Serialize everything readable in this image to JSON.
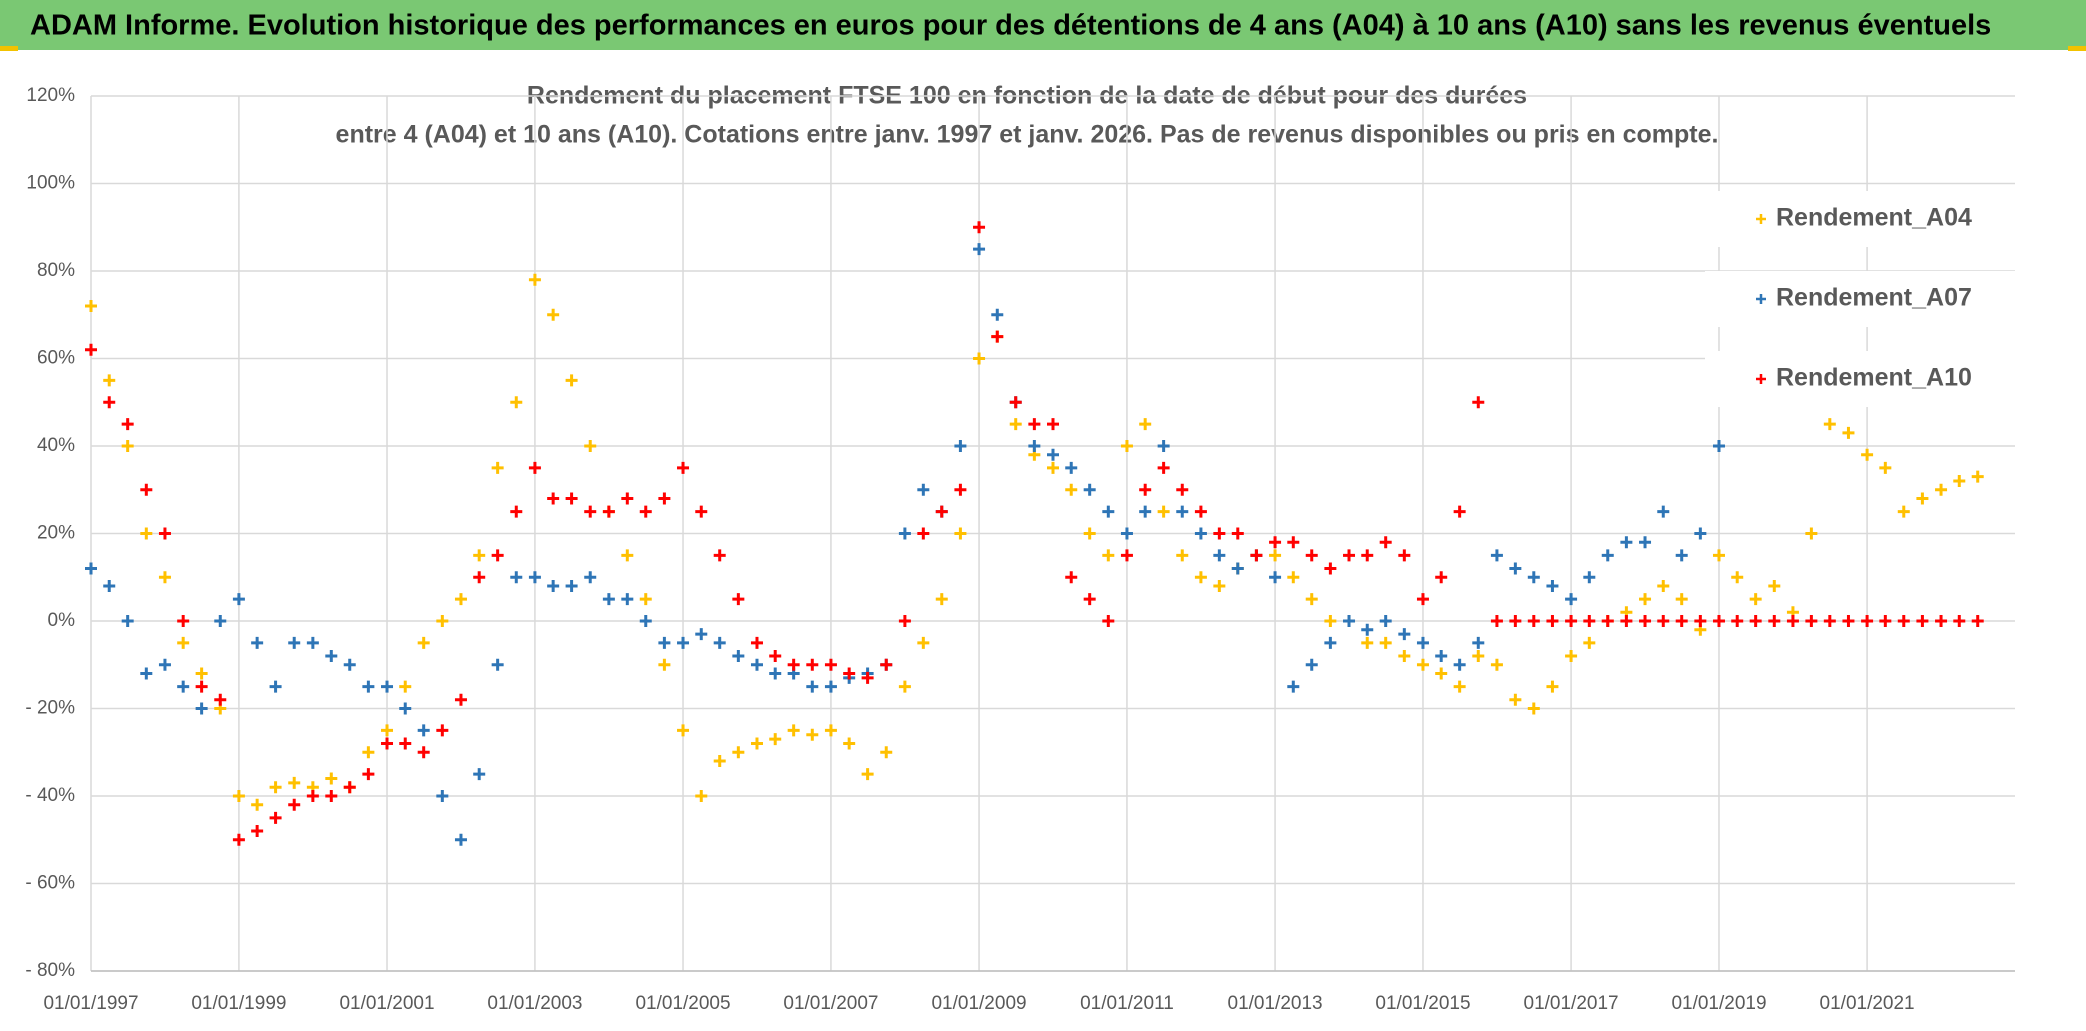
{
  "page_title": "ADAM Informe. Evolution historique des performances en euros pour des détentions de 4 ans (A04) à 10 ans (A10) sans les revenus éventuels",
  "chart_data": {
    "type": "scatter",
    "title": "Rendement du placement FTSE 100 en fonction de la date de début pour des durées",
    "subtitle": "entre 4 (A04) et 10 ans (A10). Cotations entre janv. 1997 et janv. 2026. Pas de revenus disponibles ou pris en compte.",
    "x": [
      "1997-01-01",
      "1997-04-01",
      "1997-07-01",
      "1997-10-01",
      "1998-01-01",
      "1998-04-01",
      "1998-07-01",
      "1998-10-01",
      "1999-01-01",
      "1999-04-01",
      "1999-07-01",
      "1999-10-01",
      "2000-01-01",
      "2000-04-01",
      "2000-07-01",
      "2000-10-01",
      "2001-01-01",
      "2001-04-01",
      "2001-07-01",
      "2001-10-01",
      "2002-01-01",
      "2002-04-01",
      "2002-07-01",
      "2002-10-01",
      "2003-01-01",
      "2003-04-01",
      "2003-07-01",
      "2003-10-01",
      "2004-01-01",
      "2004-04-01",
      "2004-07-01",
      "2004-10-01",
      "2005-01-01",
      "2005-04-01",
      "2005-07-01",
      "2005-10-01",
      "2006-01-01",
      "2006-04-01",
      "2006-07-01",
      "2006-10-01",
      "2007-01-01",
      "2007-04-01",
      "2007-07-01",
      "2007-10-01",
      "2008-01-01",
      "2008-04-01",
      "2008-07-01",
      "2008-10-01",
      "2009-01-01",
      "2009-04-01",
      "2009-07-01",
      "2009-10-01",
      "2010-01-01",
      "2010-04-01",
      "2010-07-01",
      "2010-10-01",
      "2011-01-01",
      "2011-04-01",
      "2011-07-01",
      "2011-10-01",
      "2012-01-01",
      "2012-04-01",
      "2012-07-01",
      "2012-10-01",
      "2013-01-01",
      "2013-04-01",
      "2013-07-01",
      "2013-10-01",
      "2014-01-01",
      "2014-04-01",
      "2014-07-01",
      "2014-10-01",
      "2015-01-01",
      "2015-04-01",
      "2015-07-01",
      "2015-10-01",
      "2016-01-01",
      "2016-04-01",
      "2016-07-01",
      "2016-10-01",
      "2017-01-01",
      "2017-04-01",
      "2017-07-01",
      "2017-10-01",
      "2018-01-01",
      "2018-04-01",
      "2018-07-01",
      "2018-10-01",
      "2019-01-01",
      "2019-04-01",
      "2019-07-01",
      "2019-10-01",
      "2020-01-01",
      "2020-04-01",
      "2020-07-01",
      "2020-10-01",
      "2021-01-01",
      "2021-04-01",
      "2021-07-01",
      "2021-10-01",
      "2022-01-01",
      "2022-04-01",
      "2022-07-01"
    ],
    "series": [
      {
        "name": "Rendement_A04",
        "color": "#ffc000",
        "values": [
          72,
          55,
          40,
          20,
          10,
          -5,
          -12,
          -20,
          -40,
          -42,
          -38,
          -37,
          -38,
          -36,
          -38,
          -30,
          -25,
          -15,
          -5,
          0,
          5,
          15,
          35,
          50,
          78,
          70,
          55,
          40,
          25,
          15,
          5,
          -10,
          -25,
          -40,
          -32,
          -30,
          -28,
          -27,
          -25,
          -26,
          -25,
          -28,
          -35,
          -30,
          -15,
          -5,
          5,
          20,
          60,
          65,
          45,
          38,
          35,
          30,
          20,
          15,
          40,
          45,
          25,
          15,
          10,
          8,
          12,
          15,
          15,
          10,
          5,
          0,
          0,
          -5,
          -5,
          -8,
          -10,
          -12,
          -15,
          -8,
          -10,
          -18,
          -20,
          -15,
          -8,
          -5,
          0,
          2,
          5,
          8,
          5,
          -2,
          15,
          10,
          5,
          8,
          2,
          20,
          45,
          43,
          38,
          35,
          25,
          28,
          30,
          32,
          33
        ]
      },
      {
        "name": "Rendement_A07",
        "color": "#2e75b6",
        "values": [
          12,
          8,
          0,
          -12,
          -10,
          -15,
          -20,
          0,
          5,
          -5,
          -15,
          -5,
          -5,
          -8,
          -10,
          -15,
          -15,
          -20,
          -25,
          -40,
          -50,
          -35,
          -10,
          10,
          10,
          8,
          8,
          10,
          5,
          5,
          0,
          -5,
          -5,
          -3,
          -5,
          -8,
          -10,
          -12,
          -12,
          -15,
          -15,
          -13,
          -12,
          -10,
          20,
          30,
          25,
          40,
          85,
          70,
          50,
          40,
          38,
          35,
          30,
          25,
          20,
          25,
          40,
          25,
          20,
          15,
          12,
          15,
          10,
          -15,
          -10,
          -5,
          0,
          -2,
          0,
          -3,
          -5,
          -8,
          -10,
          -5,
          15,
          12,
          10,
          8,
          5,
          10,
          15,
          18,
          18,
          25,
          15,
          20,
          40,
          null,
          null,
          null,
          null,
          null,
          null,
          null,
          null,
          null,
          null,
          null,
          null,
          null,
          null
        ]
      },
      {
        "name": "Rendement_A10",
        "color": "#ff0000",
        "values": [
          62,
          50,
          45,
          30,
          20,
          0,
          -15,
          -18,
          -50,
          -48,
          -45,
          -42,
          -40,
          -40,
          -38,
          -35,
          -28,
          -28,
          -30,
          -25,
          -18,
          10,
          15,
          25,
          35,
          28,
          28,
          25,
          25,
          28,
          25,
          28,
          35,
          25,
          15,
          5,
          -5,
          -8,
          -10,
          -10,
          -10,
          -12,
          -13,
          -10,
          0,
          20,
          25,
          30,
          90,
          65,
          50,
          45,
          45,
          10,
          5,
          0,
          15,
          30,
          35,
          30,
          25,
          20,
          20,
          15,
          18,
          18,
          15,
          12,
          15,
          15,
          18,
          15,
          5,
          10,
          25,
          50,
          0,
          0,
          0,
          0,
          0,
          0,
          0,
          0,
          0,
          0,
          0,
          0,
          0,
          0,
          0,
          0,
          0,
          0,
          0,
          0,
          0,
          0,
          0,
          0,
          0,
          0,
          0
        ]
      }
    ],
    "xlim": [
      "1997-01-01",
      "2023-01-01"
    ],
    "xticks": [
      {
        "value": "1997-01-01",
        "label": "01/01/1997"
      },
      {
        "value": "1999-01-01",
        "label": "01/01/1999"
      },
      {
        "value": "2001-01-01",
        "label": "01/01/2001"
      },
      {
        "value": "2003-01-01",
        "label": "01/01/2003"
      },
      {
        "value": "2005-01-01",
        "label": "01/01/2005"
      },
      {
        "value": "2007-01-01",
        "label": "01/01/2007"
      },
      {
        "value": "2009-01-01",
        "label": "01/01/2009"
      },
      {
        "value": "2011-01-01",
        "label": "01/01/2011"
      },
      {
        "value": "2013-01-01",
        "label": "01/01/2013"
      },
      {
        "value": "2015-01-01",
        "label": "01/01/2015"
      },
      {
        "value": "2017-01-01",
        "label": "01/01/2017"
      },
      {
        "value": "2019-01-01",
        "label": "01/01/2019"
      },
      {
        "value": "2021-01-01",
        "label": "01/01/2021"
      }
    ],
    "ylim": [
      -80,
      120
    ],
    "yticks": [
      {
        "value": -80,
        "label": "- 80%"
      },
      {
        "value": -60,
        "label": "- 60%"
      },
      {
        "value": -40,
        "label": "- 40%"
      },
      {
        "value": -20,
        "label": "- 20%"
      },
      {
        "value": 0,
        "label": "0%"
      },
      {
        "value": 20,
        "label": "20%"
      },
      {
        "value": 40,
        "label": "40%"
      },
      {
        "value": 60,
        "label": "60%"
      },
      {
        "value": 80,
        "label": "80%"
      },
      {
        "value": 100,
        "label": "100%"
      },
      {
        "value": 120,
        "label": "120%"
      }
    ],
    "grid": true
  }
}
